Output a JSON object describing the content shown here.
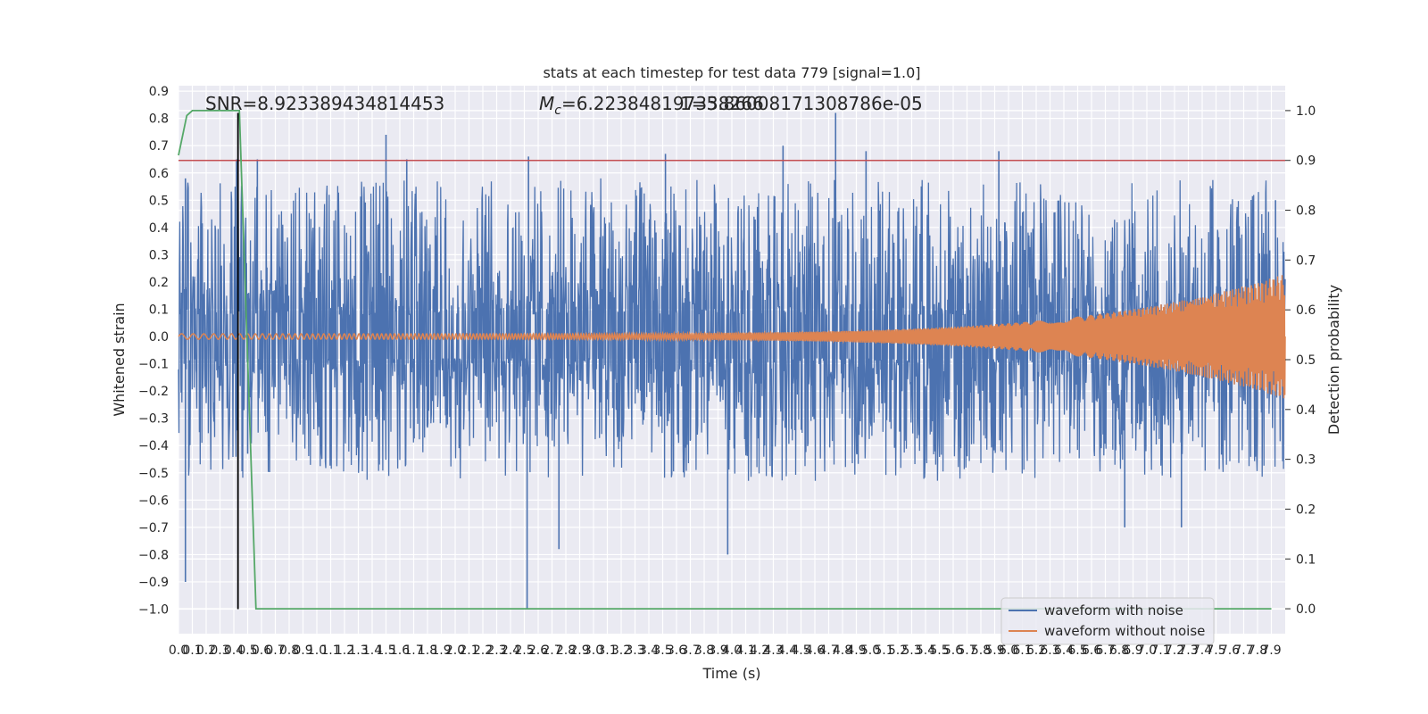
{
  "chart_data": {
    "type": "line",
    "title": "stats at each timestep for test data 779 [signal=1.0]",
    "xlabel": "Time (s)",
    "ylabel": "Whitened strain",
    "ylabel_right": "Detection probability",
    "xlim": [
      0.0,
      8.0
    ],
    "ylim": [
      -1.09,
      0.92
    ],
    "ylim_right": [
      -0.05,
      1.05
    ],
    "grid": true,
    "x_ticks": [
      "0.0",
      "0.1",
      "0.2",
      "0.3",
      "0.4",
      "0.5",
      "0.6",
      "0.7",
      "0.8",
      "0.9",
      "1.0",
      "1.1",
      "1.2",
      "1.3",
      "1.4",
      "1.5",
      "1.6",
      "1.7",
      "1.8",
      "1.9",
      "2.0",
      "2.1",
      "2.2",
      "2.3",
      "2.4",
      "2.5",
      "2.6",
      "2.7",
      "2.8",
      "2.9",
      "3.0",
      "3.1",
      "3.2",
      "3.3",
      "3.4",
      "3.5",
      "3.6",
      "3.7",
      "3.8",
      "3.9",
      "4.0",
      "4.1",
      "4.2",
      "4.3",
      "4.4",
      "4.5",
      "4.6",
      "4.7",
      "4.8",
      "4.9",
      "5.0",
      "5.1",
      "5.2",
      "5.3",
      "5.4",
      "5.5",
      "5.6",
      "5.7",
      "5.8",
      "5.9",
      "6.0",
      "6.1",
      "6.2",
      "6.3",
      "6.4",
      "6.5",
      "6.6",
      "6.7",
      "6.8",
      "6.9",
      "7.0",
      "7.1",
      "7.2",
      "7.3",
      "7.4",
      "7.5",
      "7.6",
      "7.7",
      "7.8",
      "7.9"
    ],
    "y_ticks": [
      "0.9",
      "0.8",
      "0.7",
      "0.6",
      "0.5",
      "0.4",
      "0.3",
      "0.2",
      "0.1",
      "0.0",
      "−0.1",
      "−0.2",
      "−0.3",
      "−0.4",
      "−0.5",
      "−0.6",
      "−0.7",
      "−0.8",
      "−0.9",
      "−1.0"
    ],
    "y_tick_values": [
      0.9,
      0.8,
      0.7,
      0.6,
      0.5,
      0.4,
      0.3,
      0.2,
      0.1,
      0.0,
      -0.1,
      -0.2,
      -0.3,
      -0.4,
      -0.5,
      -0.6,
      -0.7,
      -0.8,
      -0.9,
      -1.0
    ],
    "y_right_ticks": [
      "1.0",
      "0.9",
      "0.8",
      "0.7",
      "0.6",
      "0.5",
      "0.4",
      "0.3",
      "0.2",
      "0.1",
      "0.0"
    ],
    "y_right_tick_values": [
      1.0,
      0.9,
      0.8,
      0.7,
      0.6,
      0.5,
      0.4,
      0.3,
      0.2,
      0.1,
      0.0
    ],
    "annotations": {
      "snr": "SNR=8.923389434814453",
      "mc_symbol": "M",
      "mc_subscript": "c",
      "mc_value": "=6.223848197338266",
      "overlap_value": "1=5.86008171308786e-05"
    },
    "legend": {
      "placement": "lower right",
      "entries": [
        "waveform with noise",
        "waveform without noise"
      ]
    },
    "series": [
      {
        "name": "waveform with noise",
        "axis": "left",
        "color": "#4c72b0",
        "description_range": [
          -0.45,
          0.5
        ],
        "spikes": [
          [
            0.05,
            -0.9
          ],
          [
            0.05,
            0.58
          ],
          [
            0.42,
            0.65
          ],
          [
            0.5,
            -0.43
          ],
          [
            0.57,
            0.65
          ],
          [
            1.5,
            0.74
          ],
          [
            1.65,
            0.65
          ],
          [
            2.52,
            -1.0
          ],
          [
            2.53,
            0.66
          ],
          [
            2.75,
            -0.78
          ],
          [
            3.52,
            0.67
          ],
          [
            3.97,
            -0.8
          ],
          [
            4.37,
            0.7
          ],
          [
            4.75,
            0.82
          ],
          [
            4.97,
            0.68
          ],
          [
            5.93,
            0.68
          ],
          [
            6.84,
            -0.7
          ],
          [
            7.25,
            -0.7
          ],
          [
            7.93,
            0.5
          ]
        ]
      },
      {
        "name": "waveform without noise",
        "axis": "left",
        "color": "#dd8452",
        "chirp_amplitude_start": 0.01,
        "chirp_amplitude_end": 0.23
      },
      {
        "name": "",
        "axis": "right",
        "color": "#55a868",
        "x": [
          0.0,
          0.06,
          0.1,
          0.2,
          0.3,
          0.44,
          0.56,
          0.6,
          1.0,
          2.0,
          3.0,
          4.0,
          5.0,
          6.0,
          7.0,
          7.9
        ],
        "y": [
          0.91,
          0.99,
          1.0,
          1.0,
          1.0,
          1.0,
          0.0,
          0.0,
          0.0,
          0.0,
          0.0,
          0.0,
          0.0,
          0.0,
          0.0,
          0.0
        ]
      }
    ],
    "reference_lines": [
      {
        "kind": "horizontal",
        "axis": "right",
        "value": 0.9,
        "color": "#c44e52"
      },
      {
        "kind": "vertical",
        "x": 0.43,
        "ymin": -1.0,
        "ymax": 0.82,
        "color": "#000000"
      }
    ],
    "colors": {
      "plot_background": "#eaeaf2",
      "grid": "#ffffff",
      "noise": "#4c72b0",
      "clean": "#dd8452",
      "probability": "#55a868",
      "threshold": "#c44e52",
      "marker": "#000000"
    }
  }
}
